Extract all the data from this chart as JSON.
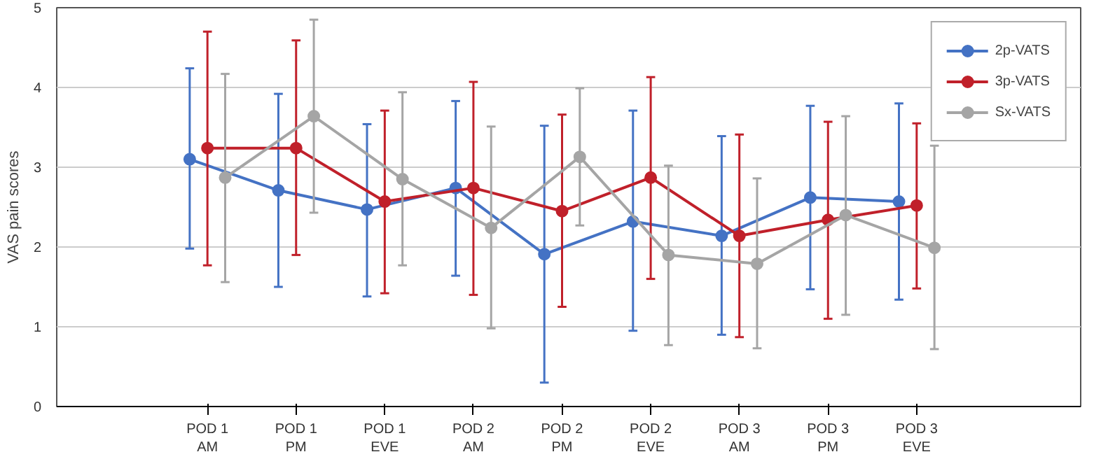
{
  "chart_data": {
    "type": "line",
    "ylabel": "VAS pain scores",
    "categories": [
      "POD 1\nAM",
      "POD 1\nPM",
      "POD 1\nEVE",
      "POD 2\nAM",
      "POD 2\nPM",
      "POD 2\nEVE",
      "POD 3\nAM",
      "POD 3\nPM",
      "POD 3\nEVE"
    ],
    "ylim": [
      0,
      5
    ],
    "yticks": [
      0,
      1,
      2,
      3,
      4,
      5
    ],
    "grid": "y",
    "legend": "top right",
    "marker": "circle",
    "line_style": "solid",
    "series": [
      {
        "name": "2p-VATS",
        "color": "#4472c4",
        "values": [
          3.1,
          2.71,
          2.47,
          2.74,
          1.91,
          2.32,
          2.14,
          2.62,
          2.57
        ],
        "errors": [
          [
            1.98,
            4.24
          ],
          [
            1.5,
            3.92
          ],
          [
            1.38,
            3.54
          ],
          [
            1.64,
            3.83
          ],
          [
            0.3,
            3.52
          ],
          [
            0.95,
            3.71
          ],
          [
            0.9,
            3.39
          ],
          [
            1.47,
            3.77
          ],
          [
            1.34,
            3.8
          ]
        ]
      },
      {
        "name": "3p-VATS",
        "color": "#c0202a",
        "values": [
          3.24,
          3.24,
          2.57,
          2.74,
          2.45,
          2.87,
          2.14,
          2.34,
          2.52
        ],
        "errors": [
          [
            1.77,
            4.7
          ],
          [
            1.9,
            4.59
          ],
          [
            1.42,
            3.71
          ],
          [
            1.4,
            4.07
          ],
          [
            1.25,
            3.66
          ],
          [
            1.6,
            4.13
          ],
          [
            0.87,
            3.41
          ],
          [
            1.1,
            3.57
          ],
          [
            1.48,
            3.55
          ]
        ]
      },
      {
        "name": "Sx-VATS",
        "color": "#a5a5a5",
        "values": [
          2.87,
          3.64,
          2.85,
          2.24,
          3.13,
          1.9,
          1.79,
          2.4,
          1.99
        ],
        "errors": [
          [
            1.56,
            4.17
          ],
          [
            2.43,
            4.85
          ],
          [
            1.77,
            3.94
          ],
          [
            0.98,
            3.51
          ],
          [
            2.27,
            3.99
          ],
          [
            0.77,
            3.02
          ],
          [
            0.73,
            2.86
          ],
          [
            1.15,
            3.64
          ],
          [
            0.72,
            3.27
          ]
        ]
      }
    ]
  }
}
